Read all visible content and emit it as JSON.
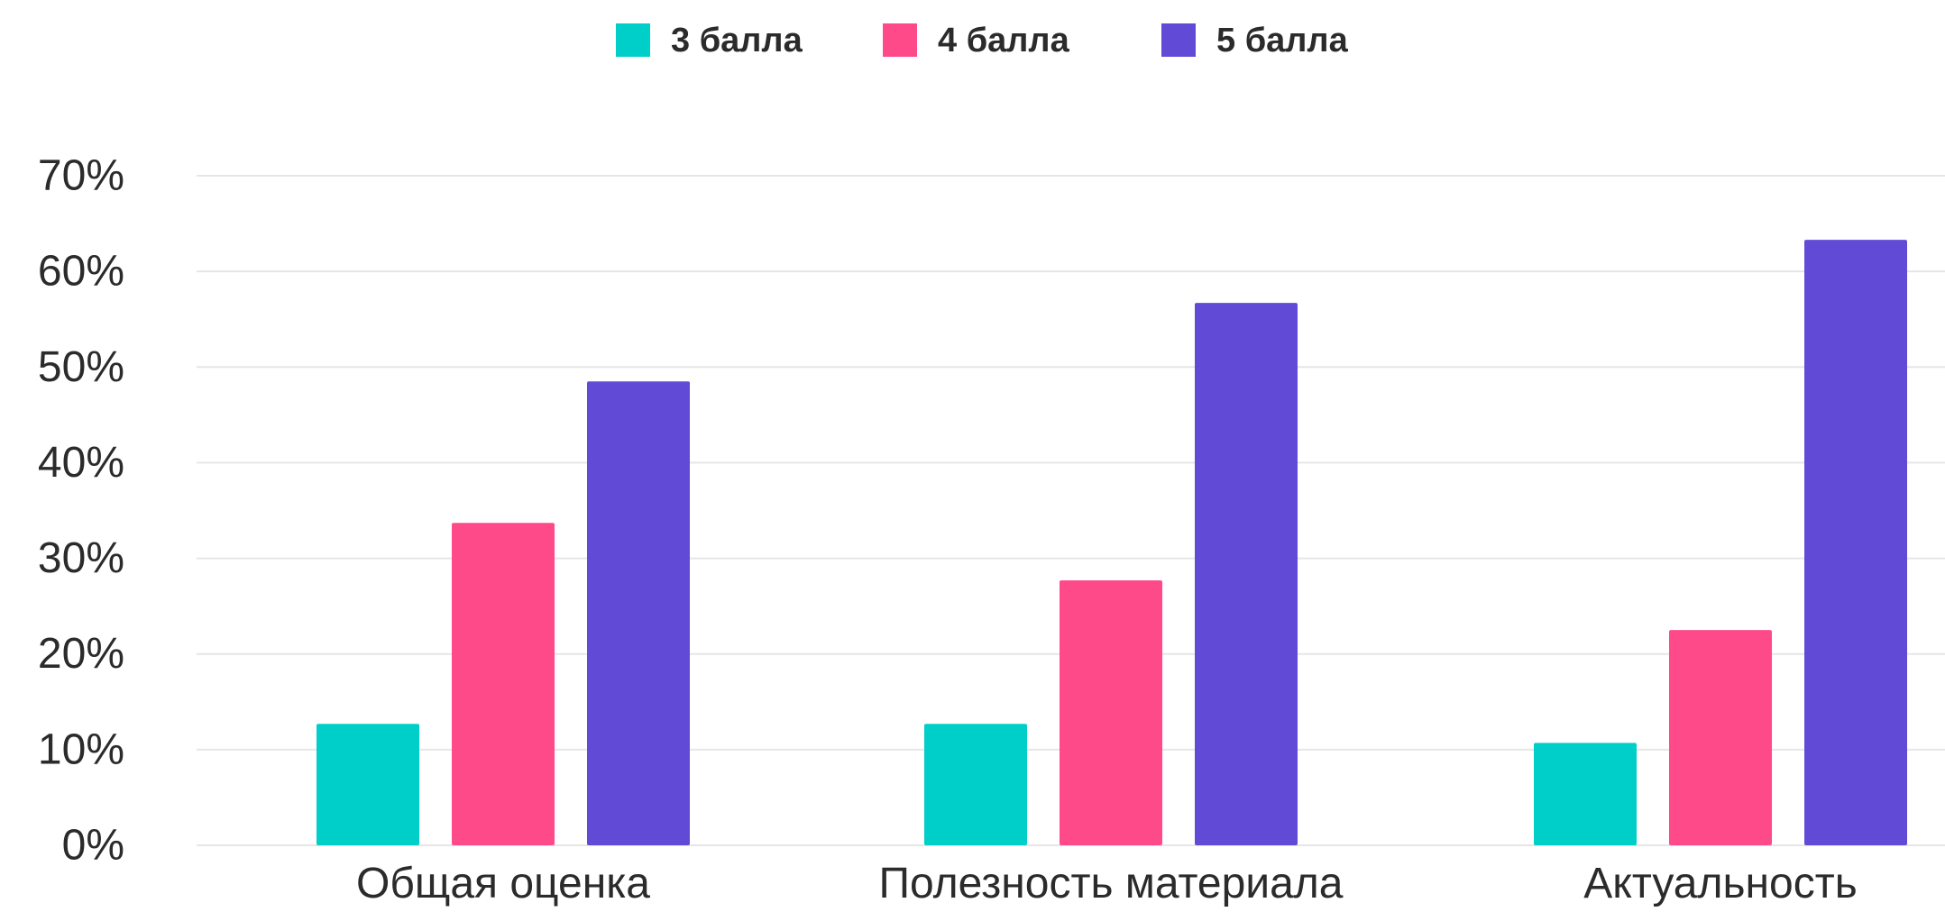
{
  "chart_data": {
    "type": "bar",
    "categories": [
      "Общая оценка",
      "Полезность материала",
      "Актуальность"
    ],
    "series": [
      {
        "name": "3 балла",
        "color": "#00CEC9",
        "values": [
          12.7,
          12.7,
          10.7
        ]
      },
      {
        "name": "4 балла",
        "color": "#FF4A8A",
        "values": [
          33.7,
          27.7,
          22.5
        ]
      },
      {
        "name": "5 балла",
        "color": "#614BD6",
        "values": [
          48.5,
          56.7,
          63.3
        ]
      }
    ],
    "yticks": [
      "0%",
      "10%",
      "20%",
      "30%",
      "40%",
      "50%",
      "60%",
      "70%"
    ],
    "ylim": [
      0,
      70
    ],
    "grid": true,
    "legend_position": "top-center",
    "grid_color": "#e6e6e6"
  }
}
